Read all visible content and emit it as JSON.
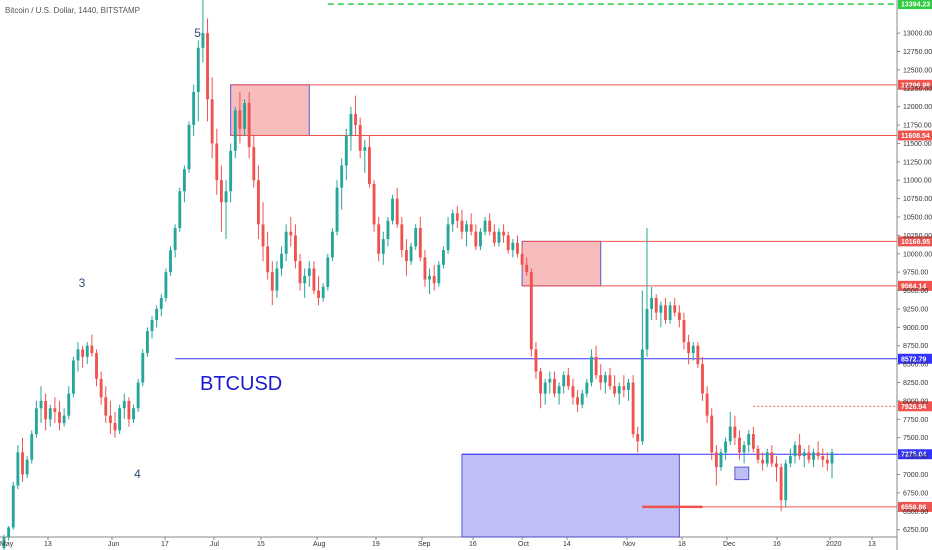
{
  "title": "Bitcoin / U.S. Dollar, 1440, BITSTAMP",
  "colors": {
    "up": "#26a69a",
    "down": "#ef5350",
    "resistance": "#ef5350",
    "support": "#3333ff",
    "zone_red": "#f7b6b6",
    "zone_blue": "#b9b9f7",
    "target": "#2ecc40"
  },
  "chart_data": {
    "type": "candlestick",
    "xlabels": [
      "May",
      "13",
      "Jun",
      "17",
      "Jul",
      "15",
      "Aug",
      "19",
      "Sep",
      "16",
      "Oct",
      "14",
      "Nov",
      "18",
      "Dec",
      "16",
      "2020",
      "13"
    ],
    "ylim": [
      6150,
      13450
    ],
    "yticks": [
      13000,
      12750,
      12500,
      12250,
      12000,
      11750,
      11500,
      11250,
      11000,
      10750,
      10500,
      10250,
      10000,
      9750,
      9500,
      9250,
      9000,
      8750,
      8500,
      8250,
      8000,
      7750,
      7500,
      7250,
      7000,
      6750,
      6500,
      6250
    ],
    "ytick_labels": [
      "13000.00",
      "12750.00",
      "12500.00",
      "12250.00",
      "12000.00",
      "11750.00",
      "11500.00",
      "11250.00",
      "11000.00",
      "10750.00",
      "10500.00",
      "10250.00",
      "10000.00",
      "9750.00",
      "9500.00",
      "9250.00",
      "9000.00",
      "8750.00",
      "8500.00",
      "8250.00",
      "8000.00",
      "7750.00",
      "7500.00",
      "7250.00",
      "7000.00",
      "6750.00",
      "6500.00",
      "6250.00"
    ],
    "price_levels": [
      {
        "value": 13394.23,
        "label": "13394.23",
        "kind": "target",
        "style": "dashed"
      },
      {
        "value": 12296.98,
        "label": "12296.98",
        "kind": "resistance"
      },
      {
        "value": 11608.54,
        "label": "11608.54",
        "kind": "resistance"
      },
      {
        "value": 10168.95,
        "label": "10168.95",
        "kind": "resistance"
      },
      {
        "value": 9564.14,
        "label": "9564.14",
        "kind": "resistance"
      },
      {
        "value": 8572.79,
        "label": "8572.79",
        "kind": "support"
      },
      {
        "value": 7926.94,
        "label": "7926.94",
        "kind": "resistance",
        "style": "dotted"
      },
      {
        "value": 7275.04,
        "label": "7275.04",
        "kind": "support"
      },
      {
        "value": 6558.86,
        "label": "6558.86",
        "kind": "resistance"
      }
    ],
    "wave_labels": [
      "5",
      "3",
      "4"
    ],
    "symbol": "BTCUSD",
    "candles": [
      [
        6000,
        6180,
        5950,
        6150
      ],
      [
        6150,
        6300,
        6100,
        6280
      ],
      [
        6280,
        6900,
        6250,
        6850
      ],
      [
        6850,
        7400,
        6800,
        7300
      ],
      [
        7300,
        7500,
        6900,
        7000
      ],
      [
        7000,
        7250,
        6950,
        7200
      ],
      [
        7200,
        7600,
        7150,
        7550
      ],
      [
        7550,
        8000,
        7500,
        7900
      ],
      [
        7900,
        8200,
        7700,
        8000
      ],
      [
        8000,
        8100,
        7600,
        7750
      ],
      [
        7750,
        7950,
        7650,
        7900
      ],
      [
        7900,
        8050,
        7700,
        7850
      ],
      [
        7850,
        8000,
        7600,
        7700
      ],
      [
        7700,
        7900,
        7650,
        7800
      ],
      [
        7800,
        8200,
        7750,
        8100
      ],
      [
        8100,
        8600,
        8050,
        8550
      ],
      [
        8550,
        8800,
        8400,
        8700
      ],
      [
        8700,
        8750,
        8450,
        8600
      ],
      [
        8600,
        8800,
        8500,
        8750
      ],
      [
        8750,
        8900,
        8600,
        8650
      ],
      [
        8650,
        8700,
        8200,
        8300
      ],
      [
        8300,
        8400,
        7950,
        8050
      ],
      [
        8050,
        8200,
        7700,
        7800
      ],
      [
        7800,
        8000,
        7550,
        7700
      ],
      [
        7700,
        7850,
        7500,
        7600
      ],
      [
        7600,
        7950,
        7550,
        7900
      ],
      [
        7900,
        8100,
        7750,
        8000
      ],
      [
        8000,
        8050,
        7650,
        7750
      ],
      [
        7750,
        7950,
        7700,
        7900
      ],
      [
        7900,
        8300,
        7850,
        8250
      ],
      [
        8250,
        8700,
        8200,
        8650
      ],
      [
        8650,
        9000,
        8600,
        8950
      ],
      [
        8950,
        9150,
        8850,
        9100
      ],
      [
        9100,
        9300,
        9000,
        9250
      ],
      [
        9250,
        9450,
        9150,
        9400
      ],
      [
        9400,
        9800,
        9350,
        9750
      ],
      [
        9750,
        10100,
        9700,
        10050
      ],
      [
        10050,
        10400,
        9950,
        10350
      ],
      [
        10350,
        10900,
        10300,
        10850
      ],
      [
        10850,
        11200,
        10700,
        11150
      ],
      [
        11150,
        11800,
        11100,
        11750
      ],
      [
        11750,
        12300,
        11600,
        12200
      ],
      [
        12200,
        12900,
        11800,
        12800
      ],
      [
        12800,
        13450,
        12600,
        13000
      ],
      [
        13000,
        13200,
        11800,
        12100
      ],
      [
        12100,
        12400,
        11300,
        11500
      ],
      [
        11500,
        11700,
        10800,
        11000
      ],
      [
        11000,
        11200,
        10300,
        10700
      ],
      [
        10700,
        11000,
        10200,
        10850
      ],
      [
        10850,
        11500,
        10700,
        11400
      ],
      [
        11400,
        12000,
        11300,
        11950
      ],
      [
        11950,
        12200,
        11500,
        11700
      ],
      [
        11700,
        12100,
        11600,
        12050
      ],
      [
        12050,
        12200,
        11300,
        11450
      ],
      [
        11450,
        11600,
        10900,
        11000
      ],
      [
        11000,
        11200,
        10200,
        10400
      ],
      [
        10400,
        10700,
        9900,
        10100
      ],
      [
        10100,
        10300,
        9650,
        9750
      ],
      [
        9750,
        9900,
        9300,
        9500
      ],
      [
        9500,
        9900,
        9400,
        9800
      ],
      [
        9800,
        10100,
        9700,
        10000
      ],
      [
        10000,
        10400,
        9900,
        10300
      ],
      [
        10300,
        10500,
        10100,
        10250
      ],
      [
        10250,
        10400,
        9800,
        9900
      ],
      [
        9900,
        10000,
        9500,
        9600
      ],
      [
        9600,
        9800,
        9400,
        9700
      ],
      [
        9700,
        9900,
        9550,
        9800
      ],
      [
        9800,
        9900,
        9450,
        9500
      ],
      [
        9500,
        9700,
        9300,
        9400
      ],
      [
        9400,
        9600,
        9350,
        9550
      ],
      [
        9550,
        10000,
        9500,
        9950
      ],
      [
        9950,
        10350,
        9900,
        10300
      ],
      [
        10300,
        11000,
        10250,
        10900
      ],
      [
        10900,
        11300,
        10600,
        11200
      ],
      [
        11200,
        11700,
        11000,
        11600
      ],
      [
        11600,
        12000,
        11400,
        11900
      ],
      [
        11900,
        12150,
        11600,
        11750
      ],
      [
        11750,
        11850,
        11300,
        11400
      ],
      [
        11400,
        11550,
        11100,
        11450
      ],
      [
        11450,
        11600,
        10900,
        10950
      ],
      [
        10950,
        11000,
        10300,
        10400
      ],
      [
        10400,
        10500,
        9900,
        10000
      ],
      [
        10000,
        10300,
        9850,
        10200
      ],
      [
        10200,
        10500,
        10100,
        10450
      ],
      [
        10450,
        10800,
        10400,
        10750
      ],
      [
        10750,
        10900,
        10350,
        10400
      ],
      [
        10400,
        10500,
        9950,
        10050
      ],
      [
        10050,
        10200,
        9700,
        9900
      ],
      [
        9900,
        10150,
        9850,
        10100
      ],
      [
        10100,
        10400,
        10050,
        10350
      ],
      [
        10350,
        10500,
        9900,
        9950
      ],
      [
        9950,
        10050,
        9550,
        9650
      ],
      [
        9650,
        9800,
        9450,
        9700
      ],
      [
        9700,
        9850,
        9500,
        9600
      ],
      [
        9600,
        9900,
        9550,
        9850
      ],
      [
        9850,
        10100,
        9800,
        10050
      ],
      [
        10050,
        10500,
        10000,
        10400
      ],
      [
        10400,
        10600,
        10300,
        10550
      ],
      [
        10550,
        10650,
        10350,
        10450
      ],
      [
        10450,
        10600,
        10200,
        10300
      ],
      [
        10300,
        10450,
        10100,
        10400
      ],
      [
        10400,
        10550,
        10250,
        10300
      ],
      [
        10300,
        10400,
        10050,
        10100
      ],
      [
        10100,
        10350,
        10050,
        10300
      ],
      [
        10300,
        10500,
        10250,
        10450
      ],
      [
        10450,
        10550,
        10250,
        10300
      ],
      [
        10300,
        10400,
        10100,
        10150
      ],
      [
        10150,
        10350,
        10100,
        10300
      ],
      [
        10300,
        10400,
        10150,
        10250
      ],
      [
        10250,
        10300,
        10000,
        10050
      ],
      [
        10050,
        10200,
        9950,
        10150
      ],
      [
        10150,
        10250,
        9950,
        10000
      ],
      [
        10000,
        10100,
        9800,
        9850
      ],
      [
        9850,
        9950,
        9700,
        9750
      ],
      [
        9750,
        9800,
        8600,
        8700
      ],
      [
        8700,
        8800,
        8300,
        8400
      ],
      [
        8400,
        8450,
        7900,
        8100
      ],
      [
        8100,
        8300,
        7950,
        8250
      ],
      [
        8250,
        8400,
        8100,
        8300
      ],
      [
        8300,
        8400,
        8050,
        8100
      ],
      [
        8100,
        8250,
        7950,
        8200
      ],
      [
        8200,
        8400,
        8100,
        8350
      ],
      [
        8350,
        8450,
        8150,
        8200
      ],
      [
        8200,
        8300,
        7950,
        8050
      ],
      [
        8050,
        8150,
        7850,
        7950
      ],
      [
        7950,
        8150,
        7900,
        8100
      ],
      [
        8100,
        8300,
        8050,
        8250
      ],
      [
        8250,
        8700,
        8200,
        8600
      ],
      [
        8600,
        8750,
        8300,
        8350
      ],
      [
        8350,
        8500,
        8150,
        8250
      ],
      [
        8250,
        8400,
        8100,
        8350
      ],
      [
        8350,
        8450,
        8150,
        8200
      ],
      [
        8200,
        8350,
        8050,
        8100
      ],
      [
        8100,
        8250,
        7950,
        8200
      ],
      [
        8200,
        8350,
        8050,
        8150
      ],
      [
        8150,
        8300,
        8000,
        8250
      ],
      [
        8250,
        8350,
        7500,
        7550
      ],
      [
        7550,
        7650,
        7300,
        7450
      ],
      [
        7450,
        9500,
        7400,
        8700
      ],
      [
        8700,
        10350,
        8600,
        9250
      ],
      [
        9250,
        9550,
        9100,
        9400
      ],
      [
        9400,
        9450,
        9100,
        9200
      ],
      [
        9200,
        9350,
        9000,
        9300
      ],
      [
        9300,
        9400,
        9050,
        9100
      ],
      [
        9100,
        9350,
        9050,
        9300
      ],
      [
        9300,
        9400,
        9150,
        9200
      ],
      [
        9200,
        9300,
        9000,
        9100
      ],
      [
        9100,
        9200,
        8700,
        8800
      ],
      [
        8800,
        8900,
        8500,
        8650
      ],
      [
        8650,
        8800,
        8550,
        8750
      ],
      [
        8750,
        8800,
        8450,
        8500
      ],
      [
        8500,
        8600,
        8000,
        8100
      ],
      [
        8100,
        8200,
        7700,
        7800
      ],
      [
        7800,
        7900,
        7200,
        7300
      ],
      [
        7300,
        7400,
        6850,
        7100
      ],
      [
        7100,
        7350,
        7050,
        7300
      ],
      [
        7300,
        7500,
        7200,
        7450
      ],
      [
        7450,
        7850,
        7400,
        7650
      ],
      [
        7650,
        7800,
        7400,
        7500
      ],
      [
        7500,
        7600,
        7200,
        7300
      ],
      [
        7300,
        7450,
        7150,
        7400
      ],
      [
        7400,
        7600,
        7300,
        7550
      ],
      [
        7550,
        7650,
        7300,
        7350
      ],
      [
        7350,
        7400,
        7150,
        7200
      ],
      [
        7200,
        7300,
        7050,
        7150
      ],
      [
        7150,
        7350,
        7100,
        7300
      ],
      [
        7300,
        7400,
        7100,
        7150
      ],
      [
        7150,
        7250,
        6900,
        7100
      ],
      [
        7100,
        7150,
        6500,
        6650
      ],
      [
        6650,
        7200,
        6550,
        7150
      ],
      [
        7150,
        7350,
        7100,
        7250
      ],
      [
        7250,
        7450,
        7150,
        7400
      ],
      [
        7400,
        7550,
        7200,
        7250
      ],
      [
        7250,
        7350,
        7100,
        7300
      ],
      [
        7300,
        7400,
        7150,
        7200
      ],
      [
        7200,
        7350,
        7100,
        7300
      ],
      [
        7300,
        7450,
        7200,
        7250
      ],
      [
        7250,
        7350,
        7100,
        7200
      ],
      [
        7200,
        7300,
        7050,
        7150
      ],
      [
        7150,
        7350,
        6950,
        7300
      ]
    ]
  }
}
